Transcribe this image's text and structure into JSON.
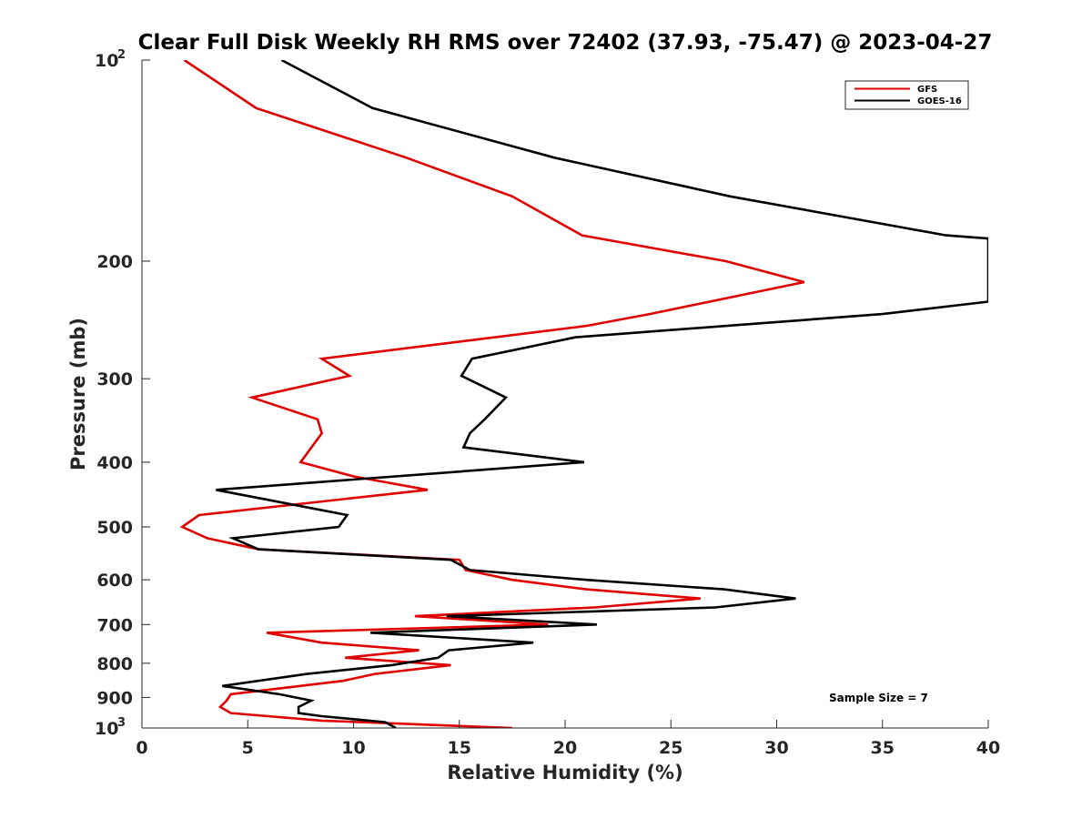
{
  "chart_data": {
    "type": "line",
    "title": "Clear Full Disk Weekly RH RMS over 72402 (37.93, -75.47) @ 2023-04-27",
    "xlabel": "Relative Humidity (%)",
    "ylabel": "Pressure (mb)",
    "xlim": [
      0,
      40
    ],
    "ylim": [
      100,
      1000
    ],
    "y_scale": "log",
    "y_reversed": true,
    "x_ticks": [
      "0",
      "5",
      "10",
      "15",
      "20",
      "25",
      "30",
      "35",
      "40"
    ],
    "y_ticks": [
      {
        "value": 100,
        "base": "10",
        "exp": "2"
      },
      {
        "value": 200,
        "label": "200"
      },
      {
        "value": 300,
        "label": "300"
      },
      {
        "value": 400,
        "label": "400"
      },
      {
        "value": 500,
        "label": "500"
      },
      {
        "value": 600,
        "label": "600"
      },
      {
        "value": 700,
        "label": "700"
      },
      {
        "value": 800,
        "label": "800"
      },
      {
        "value": 900,
        "label": "900"
      },
      {
        "value": 1000,
        "base": "10",
        "exp": "3"
      }
    ],
    "legend_position": "top-right",
    "annotation": "Sample Size = 7",
    "series": [
      {
        "name": "GFS",
        "color": "#e00000",
        "points": [
          {
            "rh": 2.0,
            "p": 100
          },
          {
            "rh": 5.4,
            "p": 118
          },
          {
            "rh": 12.5,
            "p": 140
          },
          {
            "rh": 17.5,
            "p": 160
          },
          {
            "rh": 20.8,
            "p": 183
          },
          {
            "rh": 27.6,
            "p": 200
          },
          {
            "rh": 31.3,
            "p": 215
          },
          {
            "rh": 24.0,
            "p": 240
          },
          {
            "rh": 21.0,
            "p": 250
          },
          {
            "rh": 8.5,
            "p": 280
          },
          {
            "rh": 9.8,
            "p": 297
          },
          {
            "rh": 5.2,
            "p": 320
          },
          {
            "rh": 8.3,
            "p": 345
          },
          {
            "rh": 8.5,
            "p": 362
          },
          {
            "rh": 7.5,
            "p": 400
          },
          {
            "rh": 10.0,
            "p": 420
          },
          {
            "rh": 13.5,
            "p": 440
          },
          {
            "rh": 2.7,
            "p": 480
          },
          {
            "rh": 1.9,
            "p": 500
          },
          {
            "rh": 3.1,
            "p": 520
          },
          {
            "rh": 5.5,
            "p": 540
          },
          {
            "rh": 15.0,
            "p": 560
          },
          {
            "rh": 15.3,
            "p": 580
          },
          {
            "rh": 17.5,
            "p": 600
          },
          {
            "rh": 21.0,
            "p": 620
          },
          {
            "rh": 26.4,
            "p": 640
          },
          {
            "rh": 21.4,
            "p": 660
          },
          {
            "rh": 12.9,
            "p": 680
          },
          {
            "rh": 19.2,
            "p": 700
          },
          {
            "rh": 5.9,
            "p": 720
          },
          {
            "rh": 8.5,
            "p": 745
          },
          {
            "rh": 13.1,
            "p": 765
          },
          {
            "rh": 9.6,
            "p": 785
          },
          {
            "rh": 14.6,
            "p": 805
          },
          {
            "rh": 11.0,
            "p": 830
          },
          {
            "rh": 9.5,
            "p": 850
          },
          {
            "rh": 4.2,
            "p": 890
          },
          {
            "rh": 4.0,
            "p": 910
          },
          {
            "rh": 3.7,
            "p": 930
          },
          {
            "rh": 4.2,
            "p": 950
          },
          {
            "rh": 8.5,
            "p": 975
          },
          {
            "rh": 17.5,
            "p": 1000
          }
        ]
      },
      {
        "name": "GOES-16",
        "color": "#000000",
        "points": [
          {
            "rh": 6.6,
            "p": 100
          },
          {
            "rh": 10.9,
            "p": 118
          },
          {
            "rh": 19.5,
            "p": 140
          },
          {
            "rh": 27.8,
            "p": 160
          },
          {
            "rh": 38.0,
            "p": 183
          },
          {
            "rh": 40.0,
            "p": 185
          },
          {
            "rh": 40.0,
            "p": 230
          },
          {
            "rh": 35.0,
            "p": 240
          },
          {
            "rh": 20.5,
            "p": 260
          },
          {
            "rh": 15.6,
            "p": 280
          },
          {
            "rh": 15.1,
            "p": 297
          },
          {
            "rh": 17.2,
            "p": 320
          },
          {
            "rh": 16.2,
            "p": 345
          },
          {
            "rh": 15.5,
            "p": 362
          },
          {
            "rh": 15.2,
            "p": 380
          },
          {
            "rh": 20.9,
            "p": 400
          },
          {
            "rh": 3.5,
            "p": 440
          },
          {
            "rh": 9.7,
            "p": 480
          },
          {
            "rh": 9.3,
            "p": 500
          },
          {
            "rh": 4.3,
            "p": 520
          },
          {
            "rh": 5.5,
            "p": 540
          },
          {
            "rh": 14.6,
            "p": 560
          },
          {
            "rh": 15.5,
            "p": 580
          },
          {
            "rh": 21.0,
            "p": 600
          },
          {
            "rh": 27.5,
            "p": 620
          },
          {
            "rh": 30.9,
            "p": 640
          },
          {
            "rh": 27.1,
            "p": 660
          },
          {
            "rh": 14.4,
            "p": 680
          },
          {
            "rh": 21.5,
            "p": 700
          },
          {
            "rh": 10.8,
            "p": 720
          },
          {
            "rh": 18.5,
            "p": 745
          },
          {
            "rh": 14.5,
            "p": 765
          },
          {
            "rh": 14.0,
            "p": 785
          },
          {
            "rh": 11.8,
            "p": 805
          },
          {
            "rh": 7.8,
            "p": 830
          },
          {
            "rh": 3.8,
            "p": 865
          },
          {
            "rh": 6.5,
            "p": 890
          },
          {
            "rh": 8.0,
            "p": 910
          },
          {
            "rh": 7.4,
            "p": 930
          },
          {
            "rh": 7.4,
            "p": 950
          },
          {
            "rh": 8.5,
            "p": 960
          },
          {
            "rh": 11.5,
            "p": 980
          },
          {
            "rh": 12.0,
            "p": 1000
          }
        ]
      }
    ]
  }
}
